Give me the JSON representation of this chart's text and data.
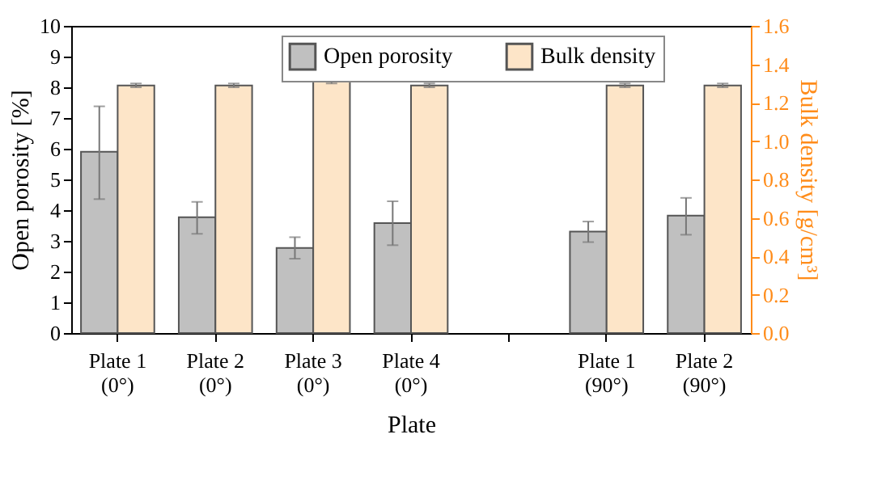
{
  "chart_data": {
    "type": "bar",
    "xlabel": "Plate",
    "ylabel": "Open porosity [%]",
    "y2label": "Bulk density [g/cm³]",
    "categories": [
      "Plate 1\n(0°)",
      "Plate 2\n(0°)",
      "Plate 3\n(0°)",
      "Plate 4\n(0°)",
      null,
      "Plate 1\n(90°)",
      "Plate 2\n(90°)"
    ],
    "series": [
      {
        "name": "Open porosity",
        "color": "#c0c0c0",
        "values": [
          5.9,
          3.77,
          2.77,
          3.58,
          null,
          3.3,
          3.82
        ],
        "errors": [
          [
            4.36,
            7.38
          ],
          [
            3.23,
            4.27
          ],
          [
            2.42,
            3.12
          ],
          [
            2.86,
            4.29
          ],
          null,
          [
            2.96,
            3.63
          ],
          [
            3.2,
            4.4
          ]
        ]
      },
      {
        "name": "Bulk density",
        "color": "#fde5c8",
        "axis": "y2",
        "values": [
          1.29,
          1.29,
          1.31,
          1.29,
          null,
          1.29,
          1.29
        ],
        "errors": [
          0.01,
          0.01,
          0.01,
          0.01,
          null,
          0.01,
          0.01
        ]
      }
    ],
    "ylim": [
      0,
      10
    ],
    "yticks": [
      0,
      1,
      2,
      3,
      4,
      5,
      6,
      7,
      8,
      9,
      10
    ],
    "y2lim": [
      0,
      1.6
    ],
    "y2ticks": [
      {
        "value": 0,
        "label": "0.0"
      },
      0.2,
      0.4,
      0.6,
      0.8,
      {
        "value": 1,
        "label": "1.0"
      },
      1.2,
      1.4,
      1.6
    ],
    "grid": false,
    "legend": "top"
  }
}
